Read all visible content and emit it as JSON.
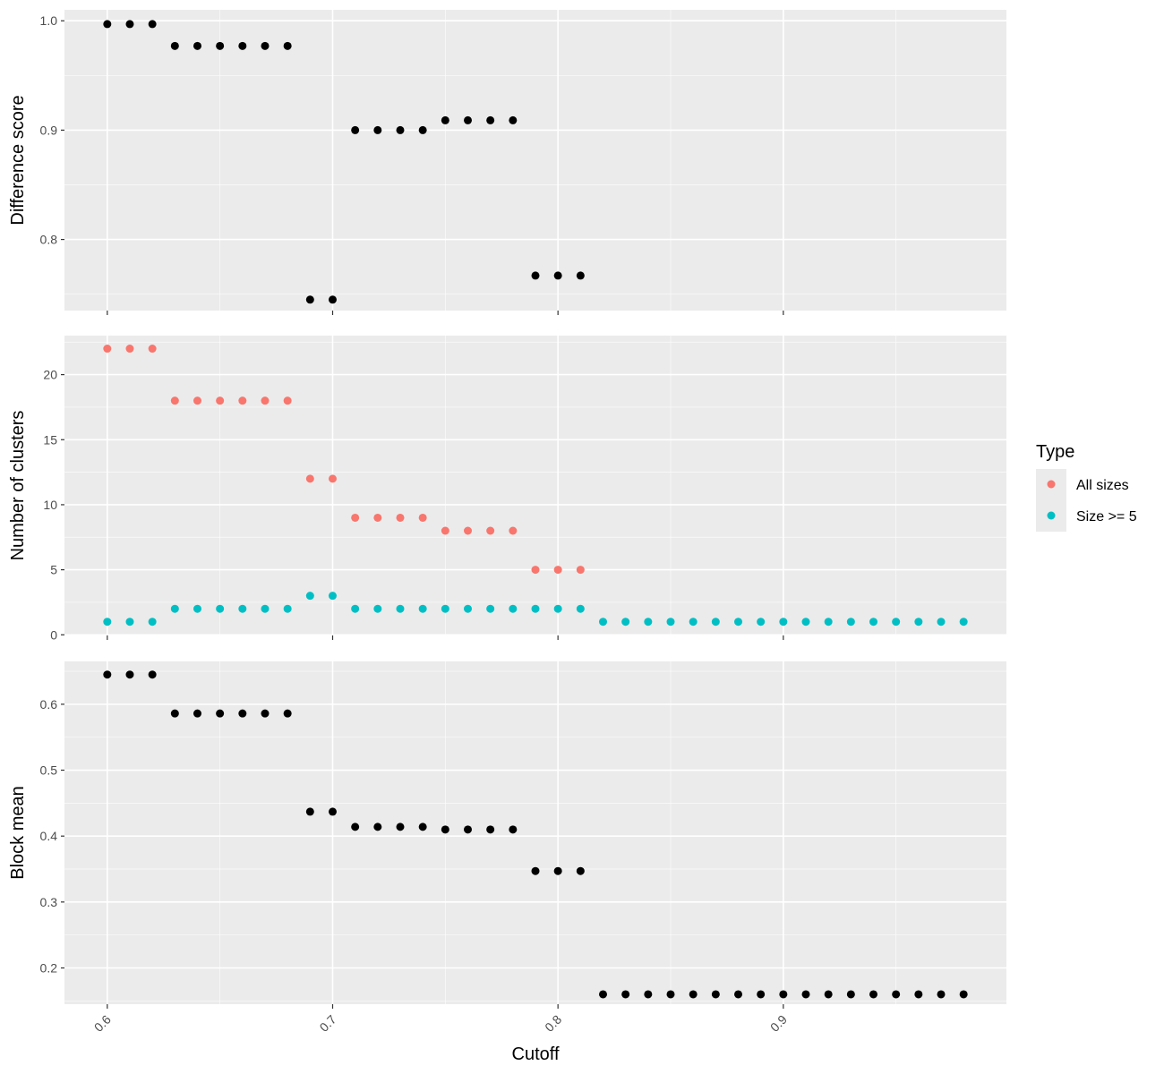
{
  "colors": {
    "panel_bg": "#EBEBEB",
    "grid_major": "#FFFFFF",
    "point_black": "#000000",
    "all_sizes": "#F8766D",
    "size_ge_5": "#00BFC4",
    "tick": "#333333"
  },
  "chart_data": [
    {
      "type": "scatter",
      "ylabel": "Difference score",
      "ylim": [
        0.735,
        1.01
      ],
      "yticks": [
        0.8,
        0.9,
        1.0
      ],
      "ytick_labels": [
        "0.8",
        "0.9",
        "1.0"
      ],
      "series": [
        {
          "color_key": "point_black",
          "points": [
            [
              0.6,
              0.997
            ],
            [
              0.61,
              0.997
            ],
            [
              0.62,
              0.997
            ],
            [
              0.63,
              0.977
            ],
            [
              0.64,
              0.977
            ],
            [
              0.65,
              0.977
            ],
            [
              0.66,
              0.977
            ],
            [
              0.67,
              0.977
            ],
            [
              0.68,
              0.977
            ],
            [
              0.69,
              0.745
            ],
            [
              0.7,
              0.745
            ],
            [
              0.71,
              0.9
            ],
            [
              0.72,
              0.9
            ],
            [
              0.73,
              0.9
            ],
            [
              0.74,
              0.9
            ],
            [
              0.75,
              0.909
            ],
            [
              0.76,
              0.909
            ],
            [
              0.77,
              0.909
            ],
            [
              0.78,
              0.909
            ],
            [
              0.79,
              0.767
            ],
            [
              0.8,
              0.767
            ],
            [
              0.81,
              0.767
            ]
          ]
        }
      ]
    },
    {
      "type": "scatter",
      "ylabel": "Number of clusters",
      "ylim": [
        -0.05,
        23.0
      ],
      "yticks": [
        0,
        5,
        10,
        15,
        20
      ],
      "ytick_labels": [
        "0",
        "5",
        "10",
        "15",
        "20"
      ],
      "series": [
        {
          "name": "All sizes",
          "color_key": "all_sizes",
          "points": [
            [
              0.6,
              22
            ],
            [
              0.61,
              22
            ],
            [
              0.62,
              22
            ],
            [
              0.63,
              18
            ],
            [
              0.64,
              18
            ],
            [
              0.65,
              18
            ],
            [
              0.66,
              18
            ],
            [
              0.67,
              18
            ],
            [
              0.68,
              18
            ],
            [
              0.69,
              12
            ],
            [
              0.7,
              12
            ],
            [
              0.71,
              9
            ],
            [
              0.72,
              9
            ],
            [
              0.73,
              9
            ],
            [
              0.74,
              9
            ],
            [
              0.75,
              8
            ],
            [
              0.76,
              8
            ],
            [
              0.77,
              8
            ],
            [
              0.78,
              8
            ],
            [
              0.79,
              5
            ],
            [
              0.8,
              5
            ],
            [
              0.81,
              5
            ]
          ]
        },
        {
          "name": "Size >= 5",
          "color_key": "size_ge_5",
          "points": [
            [
              0.6,
              1
            ],
            [
              0.61,
              1
            ],
            [
              0.62,
              1
            ],
            [
              0.63,
              2
            ],
            [
              0.64,
              2
            ],
            [
              0.65,
              2
            ],
            [
              0.66,
              2
            ],
            [
              0.67,
              2
            ],
            [
              0.68,
              2
            ],
            [
              0.69,
              3
            ],
            [
              0.7,
              3
            ],
            [
              0.71,
              2
            ],
            [
              0.72,
              2
            ],
            [
              0.73,
              2
            ],
            [
              0.74,
              2
            ],
            [
              0.75,
              2
            ],
            [
              0.76,
              2
            ],
            [
              0.77,
              2
            ],
            [
              0.78,
              2
            ],
            [
              0.79,
              2
            ],
            [
              0.8,
              2
            ],
            [
              0.81,
              2
            ],
            [
              0.82,
              1
            ],
            [
              0.83,
              1
            ],
            [
              0.84,
              1
            ],
            [
              0.85,
              1
            ],
            [
              0.86,
              1
            ],
            [
              0.87,
              1
            ],
            [
              0.88,
              1
            ],
            [
              0.89,
              1
            ],
            [
              0.9,
              1
            ],
            [
              0.91,
              1
            ],
            [
              0.92,
              1
            ],
            [
              0.93,
              1
            ],
            [
              0.94,
              1
            ],
            [
              0.95,
              1
            ],
            [
              0.96,
              1
            ],
            [
              0.97,
              1
            ],
            [
              0.98,
              1
            ]
          ]
        }
      ]
    },
    {
      "type": "scatter",
      "ylabel": "Block mean",
      "ylim": [
        0.145,
        0.665
      ],
      "yticks": [
        0.2,
        0.3,
        0.4,
        0.5,
        0.6
      ],
      "ytick_labels": [
        "0.2",
        "0.3",
        "0.4",
        "0.5",
        "0.6"
      ],
      "series": [
        {
          "color_key": "point_black",
          "points": [
            [
              0.6,
              0.645
            ],
            [
              0.61,
              0.645
            ],
            [
              0.62,
              0.645
            ],
            [
              0.63,
              0.586
            ],
            [
              0.64,
              0.586
            ],
            [
              0.65,
              0.586
            ],
            [
              0.66,
              0.586
            ],
            [
              0.67,
              0.586
            ],
            [
              0.68,
              0.586
            ],
            [
              0.69,
              0.437
            ],
            [
              0.7,
              0.437
            ],
            [
              0.71,
              0.414
            ],
            [
              0.72,
              0.414
            ],
            [
              0.73,
              0.414
            ],
            [
              0.74,
              0.414
            ],
            [
              0.75,
              0.41
            ],
            [
              0.76,
              0.41
            ],
            [
              0.77,
              0.41
            ],
            [
              0.78,
              0.41
            ],
            [
              0.79,
              0.347
            ],
            [
              0.8,
              0.347
            ],
            [
              0.81,
              0.347
            ],
            [
              0.82,
              0.16
            ],
            [
              0.83,
              0.16
            ],
            [
              0.84,
              0.16
            ],
            [
              0.85,
              0.16
            ],
            [
              0.86,
              0.16
            ],
            [
              0.87,
              0.16
            ],
            [
              0.88,
              0.16
            ],
            [
              0.89,
              0.16
            ],
            [
              0.9,
              0.16
            ],
            [
              0.91,
              0.16
            ],
            [
              0.92,
              0.16
            ],
            [
              0.93,
              0.16
            ],
            [
              0.94,
              0.16
            ],
            [
              0.95,
              0.16
            ],
            [
              0.96,
              0.16
            ],
            [
              0.97,
              0.16
            ],
            [
              0.98,
              0.16
            ]
          ]
        }
      ]
    }
  ],
  "x_axis": {
    "xlabel": "Cutoff",
    "xlim": [
      0.581,
      0.999
    ],
    "xticks": [
      0.6,
      0.7,
      0.8,
      0.9
    ],
    "xtick_labels": [
      "0.6",
      "0.7",
      "0.8",
      "0.9"
    ]
  },
  "legend": {
    "title": "Type",
    "position": "right",
    "items": [
      {
        "label": "All sizes",
        "color_key": "all_sizes"
      },
      {
        "label": "Size >= 5",
        "color_key": "size_ge_5"
      }
    ]
  }
}
